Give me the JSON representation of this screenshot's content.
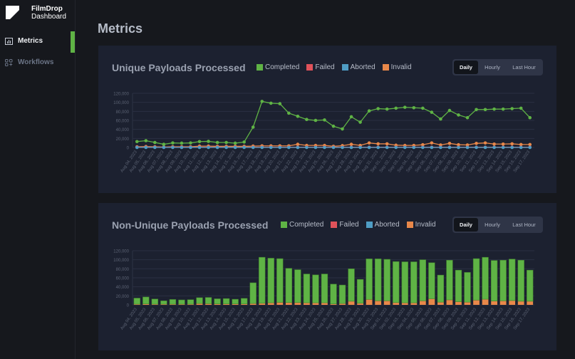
{
  "app": {
    "name": "FilmDrop",
    "subtitle": "Dashboard"
  },
  "sidebar": {
    "items": [
      {
        "label": "Metrics",
        "icon": "chart-icon",
        "active": true
      },
      {
        "label": "Workflows",
        "icon": "workflow-icon",
        "active": false
      }
    ]
  },
  "page": {
    "title": "Metrics"
  },
  "colors": {
    "completed": "#5fb345",
    "failed": "#e0525a",
    "aborted": "#4f9dc4",
    "invalid": "#e8884a",
    "accent": "#5fb345"
  },
  "time_toggle": {
    "options": [
      "Daily",
      "Hourly",
      "Last Hour"
    ],
    "selected": "Daily"
  },
  "chart_data": [
    {
      "type": "line",
      "title": "Unique Payloads Processed",
      "legend": [
        "Completed",
        "Failed",
        "Aborted",
        "Invalid"
      ],
      "legend_position": "top",
      "ylim": [
        0,
        120000
      ],
      "yticks": [
        "0",
        "20,000",
        "40,000",
        "60,000",
        "80,000",
        "100,000",
        "120,000"
      ],
      "grid": true,
      "categories": [
        "Aug 04, 2023",
        "Aug 05, 2023",
        "Aug 06, 2023",
        "Aug 07, 2023",
        "Aug 08, 2023",
        "Aug 09, 2023",
        "Aug 10, 2023",
        "Aug 11, 2023",
        "Aug 12, 2023",
        "Aug 13, 2023",
        "Aug 14, 2023",
        "Aug 15, 2023",
        "Aug 16, 2023",
        "Aug 17, 2023",
        "Aug 18, 2023",
        "Aug 19, 2023",
        "Aug 20, 2023",
        "Aug 21, 2023",
        "Aug 22, 2023",
        "Aug 23, 2023",
        "Aug 24, 2023",
        "Aug 25, 2023",
        "Aug 26, 2023",
        "Aug 27, 2023",
        "Aug 28, 2023",
        "Aug 29, 2023",
        "Aug 30, 2023",
        "Aug 31, 2023",
        "Sep 01, 2023",
        "Sep 02, 2023",
        "Sep 03, 2023",
        "Sep 04, 2023",
        "Sep 05, 2023",
        "Sep 06, 2023",
        "Sep 07, 2023",
        "Sep 08, 2023",
        "Sep 09, 2023",
        "Sep 10, 2023",
        "Sep 11, 2023",
        "Sep 12, 2023",
        "Sep 13, 2023",
        "Sep 14, 2023",
        "Sep 15, 2023",
        "Sep 16, 2023",
        "Sep 17, 2023"
      ],
      "series": [
        {
          "name": "Completed",
          "values": [
            13000,
            15000,
            11000,
            7000,
            10000,
            9500,
            10000,
            13000,
            13500,
            11000,
            11000,
            9500,
            12000,
            45000,
            102000,
            98000,
            97000,
            76000,
            69000,
            62000,
            60000,
            61000,
            47000,
            41000,
            68000,
            56000,
            81000,
            86000,
            85000,
            87000,
            89000,
            88000,
            87000,
            78000,
            63000,
            82000,
            72000,
            66000,
            84000,
            84000,
            85000,
            85000,
            86000,
            87000,
            66000
          ]
        },
        {
          "name": "Failed",
          "values": [
            500,
            500,
            500,
            500,
            500,
            500,
            500,
            500,
            500,
            500,
            500,
            500,
            500,
            500,
            500,
            500,
            500,
            500,
            500,
            500,
            500,
            500,
            500,
            500,
            500,
            500,
            500,
            500,
            500,
            500,
            500,
            500,
            500,
            500,
            500,
            500,
            500,
            500,
            500,
            500,
            500,
            500,
            500,
            500,
            500
          ]
        },
        {
          "name": "Aborted",
          "values": [
            0,
            0,
            0,
            0,
            0,
            0,
            0,
            0,
            0,
            0,
            0,
            0,
            0,
            0,
            0,
            0,
            0,
            0,
            0,
            0,
            0,
            0,
            0,
            0,
            0,
            0,
            0,
            0,
            0,
            0,
            0,
            0,
            0,
            0,
            0,
            0,
            0,
            0,
            0,
            0,
            0,
            0,
            0,
            0,
            0
          ]
        },
        {
          "name": "Invalid",
          "values": [
            1500,
            2000,
            1500,
            1000,
            1500,
            1500,
            1500,
            3000,
            3000,
            2500,
            2500,
            2500,
            2500,
            3000,
            3500,
            3500,
            3500,
            3500,
            7000,
            4500,
            4500,
            4500,
            2500,
            4000,
            7000,
            4500,
            10000,
            8000,
            8000,
            5000,
            4500,
            4500,
            6000,
            10000,
            5500,
            9000,
            6000,
            5500,
            9000,
            10000,
            7500,
            7500,
            8000,
            6500,
            6500
          ]
        }
      ]
    },
    {
      "type": "bar",
      "title": "Non-Unique Payloads Processed",
      "stacked": true,
      "legend": [
        "Completed",
        "Failed",
        "Aborted",
        "Invalid"
      ],
      "legend_position": "top",
      "ylim": [
        0,
        120000
      ],
      "yticks": [
        "0",
        "20,000",
        "40,000",
        "60,000",
        "80,000",
        "100,000",
        "120,000"
      ],
      "grid": true,
      "categories": [
        "Aug 04, 2023",
        "Aug 05, 2023",
        "Aug 06, 2023",
        "Aug 07, 2023",
        "Aug 08, 2023",
        "Aug 09, 2023",
        "Aug 10, 2023",
        "Aug 11, 2023",
        "Aug 12, 2023",
        "Aug 13, 2023",
        "Aug 14, 2023",
        "Aug 15, 2023",
        "Aug 16, 2023",
        "Aug 17, 2023",
        "Aug 18, 2023",
        "Aug 19, 2023",
        "Aug 20, 2023",
        "Aug 21, 2023",
        "Aug 22, 2023",
        "Aug 23, 2023",
        "Aug 24, 2023",
        "Aug 25, 2023",
        "Aug 26, 2023",
        "Aug 27, 2023",
        "Aug 28, 2023",
        "Aug 29, 2023",
        "Aug 30, 2023",
        "Aug 31, 2023",
        "Sep 01, 2023",
        "Sep 02, 2023",
        "Sep 03, 2023",
        "Sep 04, 2023",
        "Sep 05, 2023",
        "Sep 06, 2023",
        "Sep 07, 2023",
        "Sep 08, 2023",
        "Sep 09, 2023",
        "Sep 10, 2023",
        "Sep 11, 2023",
        "Sep 12, 2023",
        "Sep 13, 2023",
        "Sep 14, 2023",
        "Sep 15, 2023",
        "Sep 16, 2023",
        "Sep 17, 2023"
      ],
      "series": [
        {
          "name": "Completed",
          "values": [
            13500,
            15500,
            11500,
            7500,
            10500,
            9500,
            10000,
            13000,
            14000,
            11500,
            12000,
            10500,
            12500,
            46000,
            102000,
            99000,
            97000,
            76000,
            73000,
            64000,
            62000,
            64000,
            44000,
            41000,
            72000,
            53000,
            90000,
            93000,
            92000,
            91000,
            91000,
            91000,
            91000,
            80000,
            60000,
            88000,
            70000,
            66000,
            92000,
            93000,
            90000,
            90000,
            92000,
            91000,
            69000
          ]
        },
        {
          "name": "Failed",
          "values": [
            0,
            0,
            0,
            0,
            0,
            0,
            0,
            0,
            0,
            0,
            0,
            0,
            0,
            0,
            0,
            0,
            0,
            0,
            0,
            0,
            0,
            0,
            0,
            0,
            0,
            0,
            0,
            0,
            0,
            0,
            0,
            0,
            0,
            0,
            0,
            0,
            0,
            0,
            0,
            0,
            0,
            0,
            0,
            0,
            0
          ]
        },
        {
          "name": "Aborted",
          "values": [
            0,
            0,
            0,
            0,
            0,
            0,
            0,
            0,
            0,
            0,
            0,
            0,
            0,
            0,
            0,
            0,
            0,
            0,
            0,
            0,
            0,
            0,
            0,
            0,
            0,
            0,
            0,
            0,
            0,
            0,
            0,
            0,
            0,
            0,
            0,
            0,
            0,
            0,
            0,
            0,
            0,
            0,
            0,
            0,
            0
          ]
        },
        {
          "name": "Invalid",
          "values": [
            1500,
            2000,
            1500,
            1500,
            1500,
            1500,
            1500,
            3000,
            2500,
            2000,
            2000,
            2000,
            2000,
            3000,
            3500,
            4500,
            5500,
            5000,
            5000,
            4500,
            4500,
            4500,
            2000,
            3000,
            8000,
            3500,
            12000,
            9000,
            9000,
            5000,
            4500,
            4500,
            9000,
            13500,
            6000,
            11000,
            7000,
            6000,
            10500,
            12500,
            8500,
            9000,
            9500,
            8000,
            8000
          ]
        }
      ]
    }
  ]
}
